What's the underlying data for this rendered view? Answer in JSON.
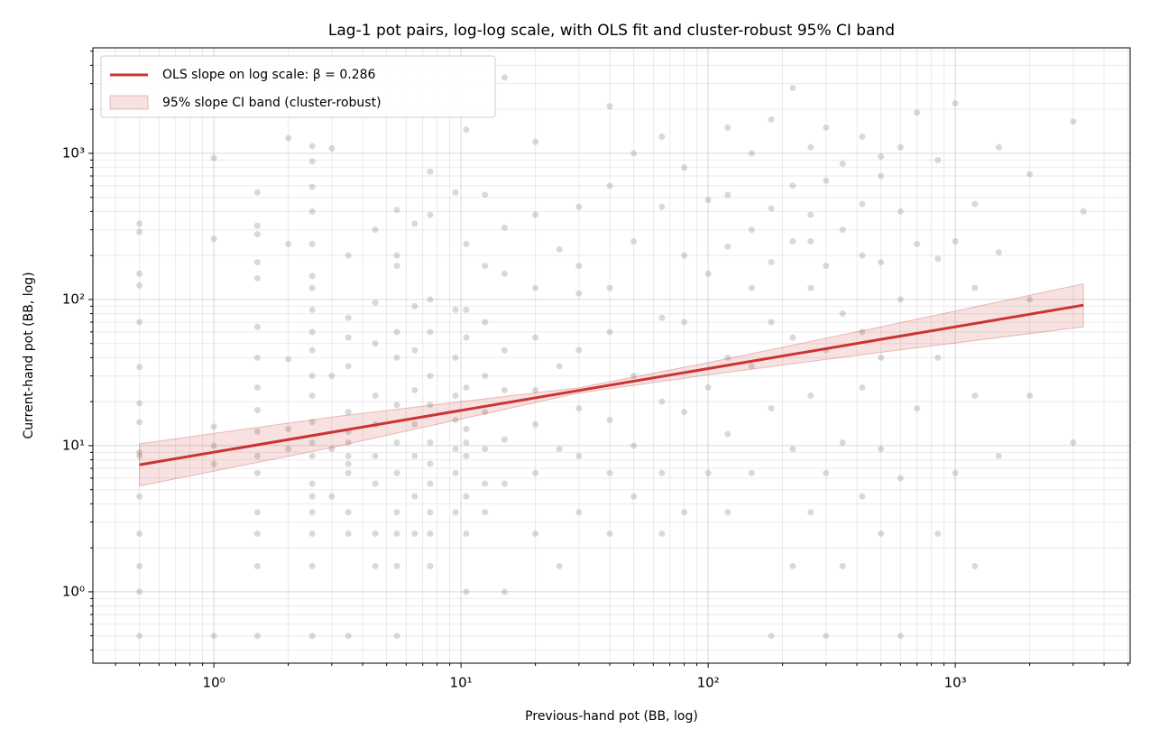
{
  "chart_data": {
    "type": "scatter",
    "title": "Lag-1 pot pairs, log-log scale, with OLS fit and cluster-robust 95% CI band",
    "xlabel": "Previous-hand pot (BB, log)",
    "ylabel": "Current-hand pot (BB, log)",
    "xscale": "log",
    "yscale": "log",
    "xlim": [
      0.324,
      5100
    ],
    "ylim": [
      0.325,
      5270
    ],
    "xticks": [
      {
        "value": 1,
        "label": "10⁰"
      },
      {
        "value": 10,
        "label": "10¹"
      },
      {
        "value": 100,
        "label": "10²"
      },
      {
        "value": 1000,
        "label": "10³"
      }
    ],
    "yticks": [
      {
        "value": 1,
        "label": "10⁰"
      },
      {
        "value": 10,
        "label": "10¹"
      },
      {
        "value": 100,
        "label": "10²"
      },
      {
        "value": 1000,
        "label": "10³"
      }
    ],
    "xminorticks": [
      0.4,
      0.5,
      0.6,
      0.7,
      0.8,
      0.9,
      2,
      3,
      4,
      5,
      6,
      7,
      8,
      9,
      20,
      30,
      40,
      50,
      60,
      70,
      80,
      90,
      200,
      300,
      400,
      500,
      600,
      700,
      800,
      900,
      2000,
      3000,
      4000,
      5000
    ],
    "yminorticks": [
      0.4,
      0.5,
      0.6,
      0.7,
      0.8,
      0.9,
      2,
      3,
      4,
      5,
      6,
      7,
      8,
      9,
      20,
      30,
      40,
      50,
      60,
      70,
      80,
      90,
      200,
      300,
      400,
      500,
      600,
      700,
      800,
      900,
      2000,
      3000,
      4000,
      5000
    ],
    "grid": true,
    "legend": "upper left",
    "points": {
      "color": "#808080",
      "x": [
        0.5,
        0.5,
        0.5,
        0.5,
        0.5,
        0.5,
        0.5,
        0.5,
        0.5,
        0.5,
        0.5,
        0.5,
        0.5,
        0.5,
        0.5,
        1,
        1,
        1,
        1,
        1,
        1,
        1.5,
        1.5,
        1.5,
        1.5,
        1.5,
        1.5,
        1.5,
        1.5,
        1.5,
        1.5,
        1.5,
        1.5,
        1.5,
        1.5,
        1.5,
        1.5,
        2,
        2,
        2,
        2,
        2,
        2.5,
        2.5,
        2.5,
        2.5,
        2.5,
        2.5,
        2.5,
        2.5,
        2.5,
        2.5,
        2.5,
        2.5,
        2.5,
        2.5,
        2.5,
        2.5,
        2.5,
        2.5,
        2.5,
        2.5,
        2.5,
        3,
        3,
        3,
        3,
        3.5,
        3.5,
        3.5,
        3.5,
        3.5,
        3.5,
        3.5,
        3.5,
        3.5,
        3.5,
        3.5,
        3.5,
        3.5,
        4.5,
        4.5,
        4.5,
        4.5,
        4.5,
        4.5,
        4.5,
        4.5,
        4.5,
        5.5,
        5.5,
        5.5,
        5.5,
        5.5,
        5.5,
        5.5,
        5.5,
        5.5,
        5.5,
        5.5,
        5.5,
        6.5,
        6.5,
        6.5,
        6.5,
        6.5,
        6.5,
        6.5,
        6.5,
        7.5,
        7.5,
        7.5,
        7.5,
        7.5,
        7.5,
        7.5,
        7.5,
        7.5,
        7.5,
        7.5,
        7.5,
        9.5,
        9.5,
        9.5,
        9.5,
        9.5,
        9.5,
        9.5,
        9.5,
        10.5,
        10.5,
        10.5,
        10.5,
        10.5,
        10.5,
        10.5,
        10.5,
        10.5,
        10.5,
        10.5,
        12.5,
        12.5,
        12.5,
        12.5,
        12.5,
        12.5,
        12.5,
        12.5,
        15,
        15,
        15,
        15,
        15,
        15,
        15,
        15,
        20,
        20,
        20,
        20,
        20,
        20,
        20,
        20,
        25,
        25,
        25,
        25,
        30,
        30,
        30,
        30,
        30,
        30,
        30,
        40,
        40,
        40,
        40,
        40,
        40,
        40,
        50,
        50,
        50,
        50,
        50,
        65,
        65,
        65,
        65,
        65,
        65,
        80,
        80,
        80,
        80,
        80,
        100,
        100,
        100,
        100,
        120,
        120,
        120,
        120,
        120,
        120,
        150,
        150,
        150,
        150,
        150,
        180,
        180,
        180,
        180,
        180,
        180,
        220,
        220,
        220,
        220,
        220,
        220,
        260,
        260,
        260,
        260,
        260,
        260,
        300,
        300,
        300,
        300,
        300,
        300,
        350,
        350,
        350,
        350,
        350,
        420,
        420,
        420,
        420,
        420,
        420,
        500,
        500,
        500,
        500,
        500,
        500,
        600,
        600,
        600,
        600,
        600,
        700,
        700,
        700,
        850,
        850,
        850,
        850,
        1000,
        1000,
        1000,
        1200,
        1200,
        1200,
        1200,
        1500,
        1500,
        1500,
        2000,
        2000,
        2000,
        3000,
        3000,
        3300
      ],
      "values": [
        0.5,
        1,
        1.5,
        2.5,
        4.5,
        8.5,
        9,
        14.5,
        19.5,
        34.5,
        70,
        125,
        150,
        290,
        330,
        0.5,
        7.5,
        10,
        13.5,
        260,
        930,
        0.5,
        1.5,
        2.5,
        3.5,
        6.5,
        8.5,
        12.5,
        17.5,
        25,
        40,
        65,
        140,
        180,
        280,
        320,
        540,
        9.5,
        13,
        39,
        240,
        1270,
        0.5,
        1.5,
        2.5,
        3.5,
        4.5,
        5.5,
        8.5,
        10.5,
        14.5,
        22,
        30,
        45,
        60,
        85,
        120,
        145,
        240,
        400,
        590,
        880,
        1120,
        4.5,
        30,
        1080,
        9.5,
        0.5,
        2.5,
        3.5,
        6.5,
        7.5,
        8.5,
        10.5,
        12.5,
        17,
        35,
        55,
        75,
        200,
        1.5,
        2.5,
        5.5,
        8.5,
        14,
        22,
        50,
        95,
        300,
        0.5,
        1.5,
        2.5,
        3.5,
        6.5,
        10.5,
        19,
        40,
        60,
        170,
        200,
        410,
        2.5,
        4.5,
        8.5,
        14,
        24,
        45,
        90,
        330,
        1.5,
        2.5,
        3.5,
        5.5,
        7.5,
        10.5,
        19,
        30,
        60,
        100,
        380,
        750,
        3.5,
        6.5,
        9.5,
        15,
        22,
        40,
        85,
        540,
        1,
        2.5,
        4.5,
        8.5,
        10.5,
        13,
        25,
        55,
        85,
        240,
        1450,
        3.5,
        5.5,
        9.5,
        17,
        30,
        70,
        170,
        520,
        1,
        5.5,
        11,
        24,
        45,
        150,
        310,
        3300,
        2.5,
        6.5,
        14,
        24,
        55,
        120,
        380,
        1200,
        1.5,
        9.5,
        35,
        220,
        3.5,
        8.5,
        18,
        45,
        110,
        170,
        430,
        2.5,
        6.5,
        15,
        60,
        120,
        600,
        2100,
        4.5,
        10,
        30,
        250,
        1000,
        2.5,
        6.5,
        20,
        75,
        430,
        1300,
        3.5,
        17,
        70,
        200,
        800,
        6.5,
        25,
        150,
        480,
        3.5,
        12,
        40,
        230,
        520,
        1500,
        6.5,
        35,
        120,
        300,
        1000,
        0.5,
        18,
        70,
        180,
        420,
        1700,
        1.5,
        9.5,
        55,
        250,
        600,
        2800,
        3.5,
        22,
        120,
        250,
        380,
        1100,
        0.5,
        6.5,
        45,
        170,
        650,
        1500,
        1.5,
        10.5,
        80,
        300,
        850,
        4.5,
        25,
        60,
        200,
        450,
        1300,
        2.5,
        9.5,
        40,
        180,
        700,
        950,
        0.5,
        6,
        100,
        400,
        1100,
        18,
        240,
        1900,
        2.5,
        40,
        190,
        900,
        6.5,
        250,
        2200,
        1.5,
        22,
        120,
        450,
        8.5,
        210,
        1100,
        22,
        100,
        720,
        10.5,
        1650,
        400
      ]
    },
    "band": {
      "name": "95% slope CI band (cluster-robust)",
      "color": "#cc3333",
      "x": [
        0.5,
        3,
        15,
        30,
        100,
        500,
        3300
      ],
      "lower": [
        5.3,
        9.7,
        17.7,
        22.9,
        30.5,
        43.5,
        65
      ],
      "upper": [
        10.3,
        15.7,
        21.7,
        24.9,
        37,
        65,
        128
      ]
    },
    "fit": {
      "name": "OLS slope on log scale: β = 0.286",
      "color": "#cc3333",
      "x": [
        0.5,
        3300
      ],
      "values": [
        7.4,
        91.5
      ]
    }
  }
}
